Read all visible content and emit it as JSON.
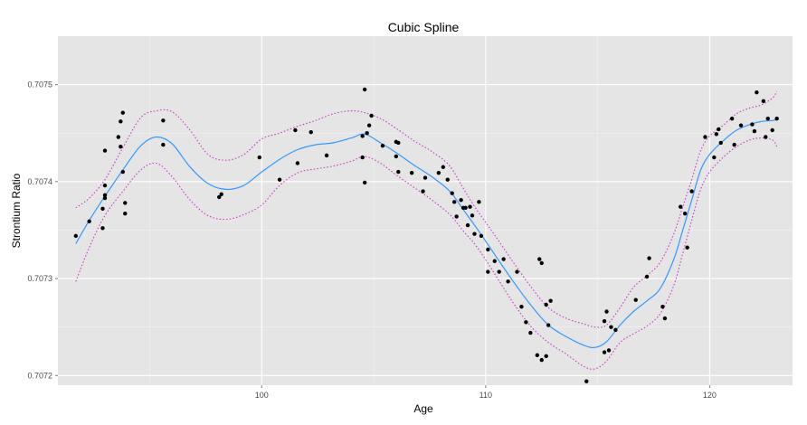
{
  "chart_data": {
    "type": "scatter",
    "title": "Cubic Spline",
    "xlabel": "Age",
    "ylabel": "Strontium Ratio",
    "xlim": [
      90.9,
      123.7
    ],
    "ylim": [
      0.70719,
      0.70755
    ],
    "x_ticks": [
      100,
      110,
      120
    ],
    "x_tick_labels": [
      "100",
      "110",
      "120"
    ],
    "y_ticks": [
      0.7072,
      0.7073,
      0.7074,
      0.7075
    ],
    "y_tick_labels": [
      "0.7072",
      "0.7073",
      "0.7074",
      "0.7075"
    ],
    "grid": true,
    "legend": "none",
    "colors": {
      "panel": "#e5e5e5",
      "grid_major": "#ffffff",
      "grid_minor": "#f2f2f2",
      "points": "#000000",
      "fit": "#3399ff",
      "band": "#cc33cc"
    },
    "points": [
      [
        91.7,
        0.707344
      ],
      [
        92.3,
        0.707359
      ],
      [
        92.9,
        0.707352
      ],
      [
        92.9,
        0.707372
      ],
      [
        93.0,
        0.707386
      ],
      [
        93.0,
        0.707396
      ],
      [
        93.0,
        0.707383
      ],
      [
        93.0,
        0.707432
      ],
      [
        93.6,
        0.707446
      ],
      [
        93.7,
        0.707436
      ],
      [
        93.7,
        0.707462
      ],
      [
        93.8,
        0.707471
      ],
      [
        93.8,
        0.70741
      ],
      [
        93.9,
        0.707378
      ],
      [
        93.9,
        0.707367
      ],
      [
        95.6,
        0.707463
      ],
      [
        95.6,
        0.707438
      ],
      [
        98.1,
        0.707384
      ],
      [
        98.2,
        0.707387
      ],
      [
        99.9,
        0.707425
      ],
      [
        100.8,
        0.707402
      ],
      [
        101.5,
        0.707453
      ],
      [
        101.6,
        0.707419
      ],
      [
        102.2,
        0.707451
      ],
      [
        102.9,
        0.707427
      ],
      [
        104.5,
        0.707447
      ],
      [
        104.5,
        0.707425
      ],
      [
        104.6,
        0.707495
      ],
      [
        104.6,
        0.707399
      ],
      [
        104.7,
        0.70745
      ],
      [
        104.8,
        0.707458
      ],
      [
        104.9,
        0.707468
      ],
      [
        105.4,
        0.707437
      ],
      [
        106.0,
        0.707441
      ],
      [
        106.0,
        0.707426
      ],
      [
        106.1,
        0.70744
      ],
      [
        106.1,
        0.70741
      ],
      [
        106.7,
        0.707409
      ],
      [
        107.2,
        0.70739
      ],
      [
        107.3,
        0.707404
      ],
      [
        107.9,
        0.707409
      ],
      [
        108.1,
        0.707415
      ],
      [
        108.3,
        0.707402
      ],
      [
        108.5,
        0.707388
      ],
      [
        108.6,
        0.707379
      ],
      [
        108.7,
        0.707364
      ],
      [
        108.9,
        0.707381
      ],
      [
        109.0,
        0.707373
      ],
      [
        109.1,
        0.707373
      ],
      [
        109.2,
        0.707355
      ],
      [
        109.3,
        0.707374
      ],
      [
        109.4,
        0.707365
      ],
      [
        109.5,
        0.707346
      ],
      [
        109.7,
        0.707379
      ],
      [
        109.8,
        0.707344
      ],
      [
        110.1,
        0.70733
      ],
      [
        110.1,
        0.707307
      ],
      [
        110.4,
        0.707318
      ],
      [
        110.6,
        0.707307
      ],
      [
        110.8,
        0.70732
      ],
      [
        111.0,
        0.707297
      ],
      [
        111.4,
        0.707307
      ],
      [
        111.6,
        0.707271
      ],
      [
        111.8,
        0.707255
      ],
      [
        112.0,
        0.707244
      ],
      [
        112.3,
        0.707221
      ],
      [
        112.4,
        0.70732
      ],
      [
        112.5,
        0.707316
      ],
      [
        112.5,
        0.707216
      ],
      [
        112.7,
        0.707273
      ],
      [
        112.7,
        0.70722
      ],
      [
        112.8,
        0.707252
      ],
      [
        112.9,
        0.707277
      ],
      [
        114.5,
        0.707194
      ],
      [
        115.3,
        0.707224
      ],
      [
        115.3,
        0.707256
      ],
      [
        115.4,
        0.707266
      ],
      [
        115.5,
        0.707226
      ],
      [
        115.6,
        0.70725
      ],
      [
        115.8,
        0.707247
      ],
      [
        116.7,
        0.707278
      ],
      [
        117.2,
        0.707302
      ],
      [
        117.3,
        0.707321
      ],
      [
        117.9,
        0.707271
      ],
      [
        118.0,
        0.707259
      ],
      [
        118.7,
        0.707374
      ],
      [
        118.9,
        0.707367
      ],
      [
        119.0,
        0.707332
      ],
      [
        119.2,
        0.70739
      ],
      [
        119.8,
        0.707446
      ],
      [
        120.2,
        0.707425
      ],
      [
        120.3,
        0.707449
      ],
      [
        120.4,
        0.707454
      ],
      [
        120.5,
        0.70744
      ],
      [
        121.0,
        0.707465
      ],
      [
        121.1,
        0.707438
      ],
      [
        121.4,
        0.707458
      ],
      [
        121.9,
        0.707459
      ],
      [
        122.0,
        0.707452
      ],
      [
        122.1,
        0.707492
      ],
      [
        122.4,
        0.707483
      ],
      [
        122.5,
        0.707446
      ],
      [
        122.6,
        0.707465
      ],
      [
        122.8,
        0.707453
      ],
      [
        123.0,
        0.707465
      ]
    ],
    "fit_x": [
      91.7,
      92.3,
      93.0,
      93.8,
      94.6,
      95.3,
      96.0,
      96.8,
      97.6,
      98.4,
      99.2,
      100.0,
      100.8,
      101.6,
      102.4,
      103.2,
      104.0,
      104.6,
      105.3,
      106.0,
      106.8,
      107.6,
      108.4,
      109.0,
      109.6,
      110.4,
      111.2,
      112.0,
      112.8,
      113.6,
      114.4,
      114.9,
      115.4,
      116.0,
      116.6,
      117.2,
      117.8,
      118.4,
      118.8,
      119.2,
      119.6,
      120.0,
      120.6,
      121.2,
      121.8,
      122.3,
      122.8,
      123.0
    ],
    "fit_y": [
      0.707336,
      0.70736,
      0.707385,
      0.707412,
      0.707437,
      0.707446,
      0.707439,
      0.707415,
      0.707398,
      0.707392,
      0.707396,
      0.70741,
      0.707423,
      0.707433,
      0.707438,
      0.70744,
      0.707445,
      0.707449,
      0.70744,
      0.70743,
      0.707417,
      0.707405,
      0.70739,
      0.707371,
      0.707352,
      0.707325,
      0.707298,
      0.707273,
      0.707252,
      0.70724,
      0.707231,
      0.707229,
      0.707235,
      0.707252,
      0.707266,
      0.707277,
      0.70729,
      0.70732,
      0.70735,
      0.707381,
      0.707412,
      0.707428,
      0.707442,
      0.707453,
      0.707459,
      0.707462,
      0.707463,
      0.707464
    ],
    "upper_y": [
      0.707373,
      0.707383,
      0.707402,
      0.707435,
      0.707466,
      0.707473,
      0.707472,
      0.707453,
      0.707428,
      0.707422,
      0.707428,
      0.707444,
      0.70745,
      0.707457,
      0.707463,
      0.70747,
      0.707473,
      0.707471,
      0.707465,
      0.707455,
      0.707442,
      0.707431,
      0.707416,
      0.707393,
      0.707371,
      0.707345,
      0.707318,
      0.707292,
      0.70727,
      0.707259,
      0.707253,
      0.70725,
      0.707252,
      0.70727,
      0.707291,
      0.707303,
      0.707317,
      0.707346,
      0.707374,
      0.707402,
      0.707432,
      0.707447,
      0.707458,
      0.70747,
      0.707476,
      0.707479,
      0.707486,
      0.707493
    ],
    "lower_y": [
      0.707297,
      0.707332,
      0.707365,
      0.70739,
      0.707412,
      0.707419,
      0.707405,
      0.707381,
      0.707365,
      0.707361,
      0.707366,
      0.707376,
      0.707396,
      0.707409,
      0.707413,
      0.707416,
      0.707421,
      0.707426,
      0.707419,
      0.707407,
      0.707394,
      0.707381,
      0.707366,
      0.707349,
      0.707333,
      0.707305,
      0.707276,
      0.707251,
      0.707234,
      0.707222,
      0.707209,
      0.707207,
      0.707215,
      0.707234,
      0.707243,
      0.707251,
      0.707264,
      0.707293,
      0.707326,
      0.70736,
      0.707392,
      0.70741,
      0.707425,
      0.707436,
      0.707443,
      0.707445,
      0.707443,
      0.707436
    ]
  }
}
